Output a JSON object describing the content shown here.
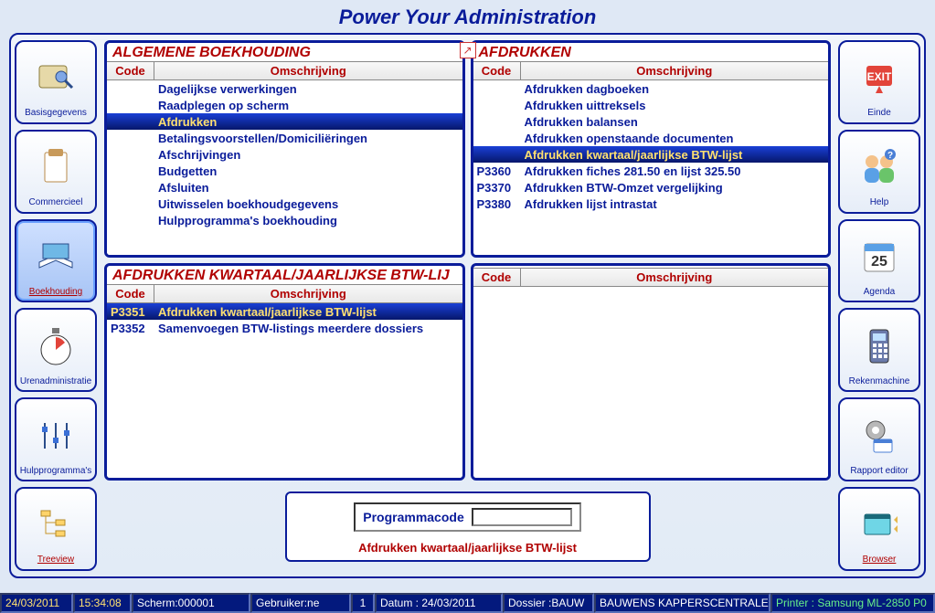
{
  "app": {
    "title": "Power Your Administration"
  },
  "left_nav": [
    {
      "key": "basis",
      "label": "Basisgegevens",
      "selected": false
    },
    {
      "key": "commer",
      "label": "Commercieel",
      "selected": false
    },
    {
      "key": "boekh",
      "label": "Boekhouding",
      "selected": true
    },
    {
      "key": "uren",
      "label": "Urenadministratie",
      "selected": false
    },
    {
      "key": "hulp",
      "label": "Hulpprogramma's",
      "selected": false
    },
    {
      "key": "tree",
      "label": "Treeview",
      "selected": false,
      "red": true
    }
  ],
  "right_nav": [
    {
      "key": "einde",
      "label": "Einde"
    },
    {
      "key": "help",
      "label": "Help"
    },
    {
      "key": "agenda",
      "label": "Agenda"
    },
    {
      "key": "reken",
      "label": "Rekenmachine"
    },
    {
      "key": "rapport",
      "label": "Rapport editor"
    },
    {
      "key": "browser",
      "label": "Browser",
      "red": true
    }
  ],
  "panel1": {
    "title": "ALGEMENE BOEKHOUDING",
    "code_header": "Code",
    "desc_header": "Omschrijving",
    "rows": [
      {
        "code": "",
        "desc": "Dagelijkse verwerkingen",
        "selected": false
      },
      {
        "code": "",
        "desc": "Raadplegen op scherm",
        "selected": false
      },
      {
        "code": "",
        "desc": "Afdrukken",
        "selected": true
      },
      {
        "code": "",
        "desc": "Betalingsvoorstellen/Domiciliëringen",
        "selected": false
      },
      {
        "code": "",
        "desc": "Afschrijvingen",
        "selected": false
      },
      {
        "code": "",
        "desc": "Budgetten",
        "selected": false
      },
      {
        "code": "",
        "desc": "Afsluiten",
        "selected": false
      },
      {
        "code": "",
        "desc": "Uitwisselen boekhoudgegevens",
        "selected": false
      },
      {
        "code": "",
        "desc": "Hulpprogramma's boekhouding",
        "selected": false
      }
    ]
  },
  "panel2": {
    "title": "AFDRUKKEN",
    "code_header": "Code",
    "desc_header": "Omschrijving",
    "rows": [
      {
        "code": "",
        "desc": "Afdrukken dagboeken",
        "selected": false
      },
      {
        "code": "",
        "desc": "Afdrukken uittreksels",
        "selected": false
      },
      {
        "code": "",
        "desc": "Afdrukken balansen",
        "selected": false
      },
      {
        "code": "",
        "desc": "Afdrukken openstaande documenten",
        "selected": false
      },
      {
        "code": "",
        "desc": "Afdrukken kwartaal/jaarlijkse BTW-lijst",
        "selected": true
      },
      {
        "code": "P3360",
        "desc": "Afdrukken fiches 281.50 en lijst 325.50",
        "selected": false
      },
      {
        "code": "P3370",
        "desc": "Afdrukken BTW-Omzet vergelijking",
        "selected": false
      },
      {
        "code": "P3380",
        "desc": "Afdrukken lijst intrastat",
        "selected": false
      }
    ]
  },
  "panel3": {
    "title": "AFDRUKKEN KWARTAAL/JAARLIJKSE BTW-LIJ",
    "code_header": "Code",
    "desc_header": "Omschrijving",
    "rows": [
      {
        "code": "P3351",
        "desc": "Afdrukken kwartaal/jaarlijkse BTW-lijst",
        "selected": true
      },
      {
        "code": "P3352",
        "desc": "Samenvoegen BTW-listings meerdere dossiers",
        "selected": false
      }
    ]
  },
  "panel4": {
    "title": "",
    "code_header": "Code",
    "desc_header": "Omschrijving",
    "rows": []
  },
  "bottom": {
    "field_label": "Programmacode",
    "field_value": "",
    "status": "Afdrukken kwartaal/jaarlijkse BTW-lijst"
  },
  "statusbar": {
    "date": "24/03/2011",
    "time": "15:34:08",
    "scherm": "Scherm:000001",
    "gebruiker": "Gebruiker:ne",
    "num": "1",
    "datum": "Datum : 24/03/2011",
    "dossier": "Dossier :BAUW",
    "dossier2": "BAUWENS KAPPERSCENTRALE",
    "printer": "Printer : Samsung ML-2850 P0"
  }
}
